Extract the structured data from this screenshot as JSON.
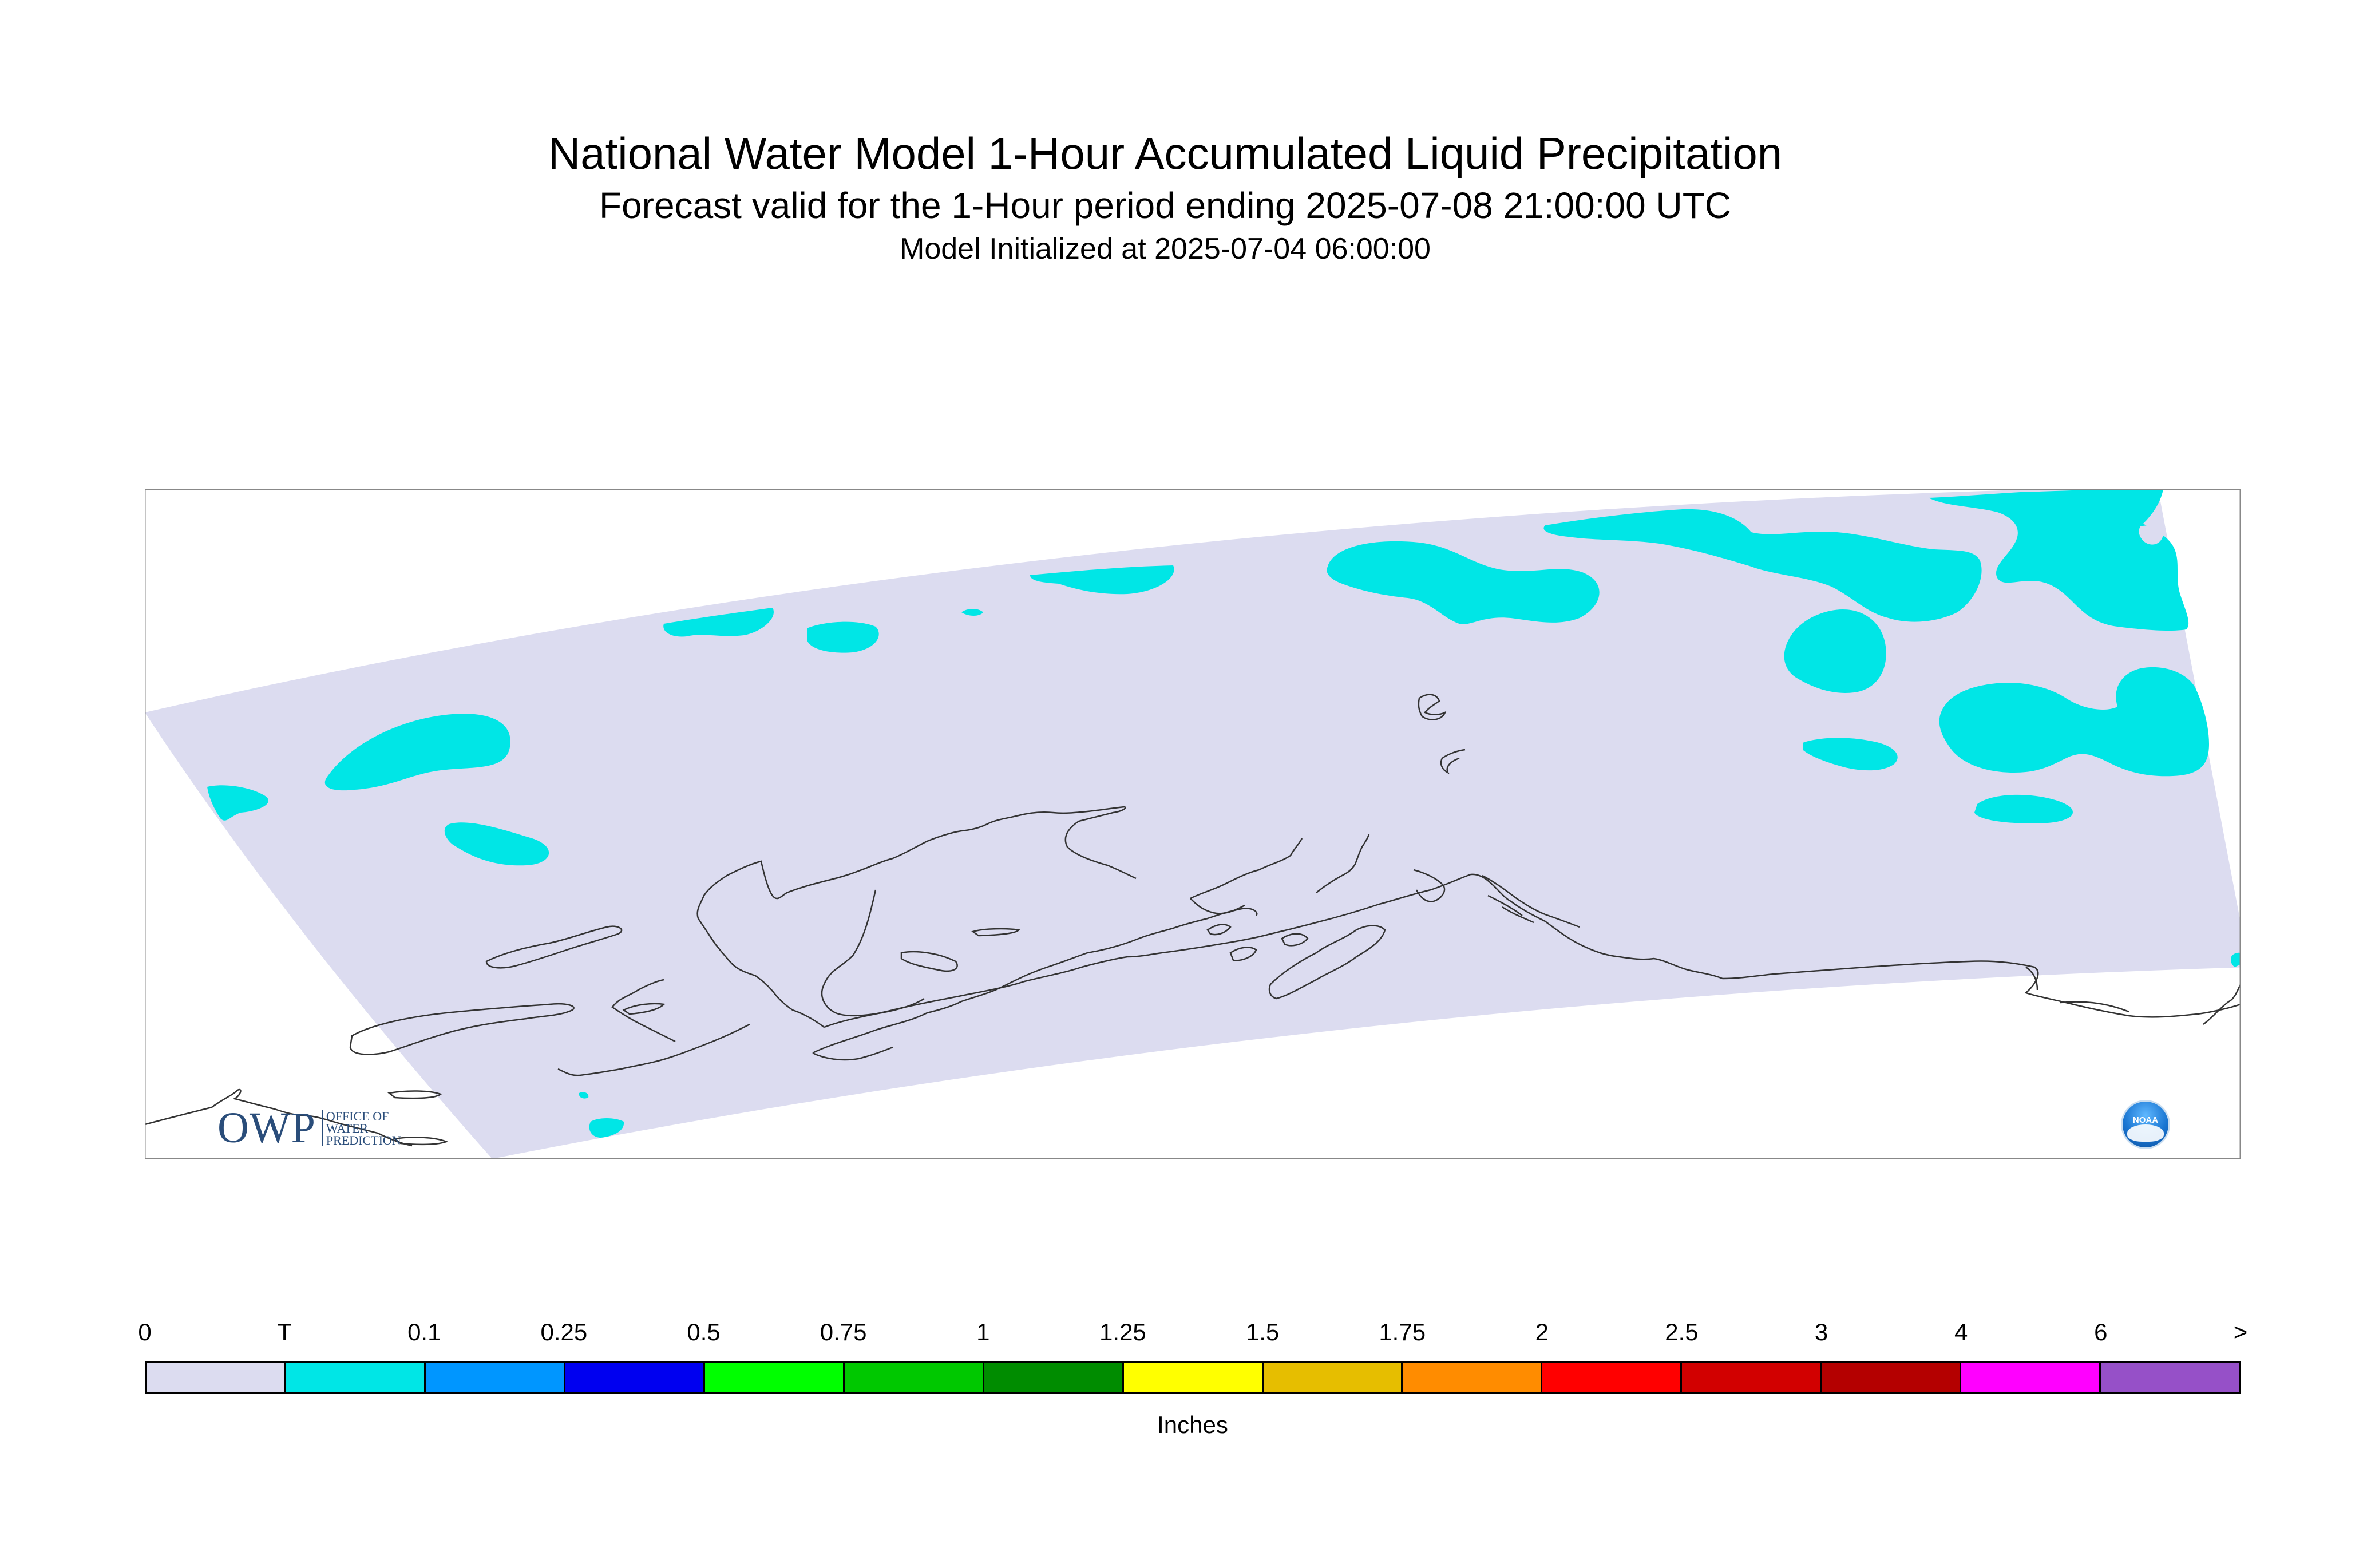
{
  "title": "National Water Model 1-Hour Accumulated Liquid Precipitation",
  "subtitle": "Forecast valid for the 1-Hour period ending 2025-07-08 21:00:00 UTC",
  "initialized": "Model Initialized at 2025-07-04 06:00:00",
  "legend": {
    "labels": [
      "0",
      "T",
      "0.1",
      "0.25",
      "0.5",
      "0.75",
      "1",
      "1.25",
      "1.5",
      "1.75",
      "2",
      "2.5",
      "3",
      "4",
      "6",
      ">"
    ],
    "colors": [
      "#dcdcf0",
      "#00e6e6",
      "#0096ff",
      "#0000f0",
      "#00ff00",
      "#00c800",
      "#008c00",
      "#ffff00",
      "#e6be00",
      "#ff8c00",
      "#ff0000",
      "#d20000",
      "#b40000",
      "#ff00ff",
      "#9650c8"
    ],
    "units": "Inches"
  },
  "logos": {
    "owp_mark": "OWP",
    "owp_text": [
      "OFFICE OF",
      "WATER",
      "PREDICTION"
    ],
    "noaa": "NOAA"
  },
  "map": {
    "domain_color": "#dcdcf0",
    "precip_color": "#00e6e6",
    "coastline_color": "#333333",
    "frame_color": "#888888"
  }
}
